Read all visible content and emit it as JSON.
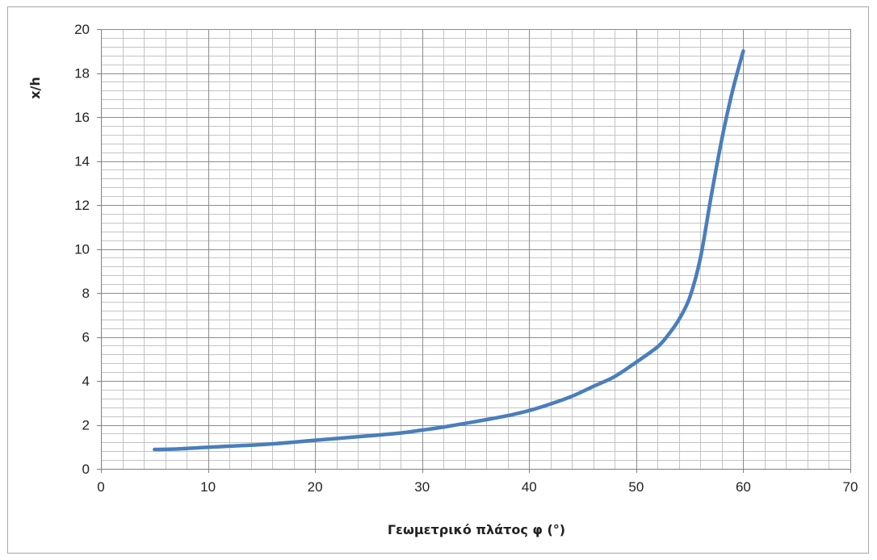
{
  "chart_data": {
    "type": "line",
    "title": "",
    "xlabel": "Γεωμετρικό πλάτος φ (°)",
    "ylabel": "x/h",
    "xlim": [
      0,
      70
    ],
    "ylim": [
      0,
      20
    ],
    "x_major_step": 10,
    "x_minor_step": 2,
    "y_major_step": 2,
    "y_minor_step": 0.4,
    "grid": true,
    "legend": "none",
    "series": [
      {
        "color": "#4a7ebb",
        "x": [
          5,
          7,
          10,
          12,
          15,
          18,
          20,
          25,
          28,
          30,
          32,
          35,
          38,
          40,
          42,
          44,
          46,
          48,
          50,
          52,
          53,
          54,
          55,
          56,
          57,
          58,
          59,
          60
        ],
        "y": [
          0.88,
          0.9,
          0.98,
          1.03,
          1.1,
          1.21,
          1.3,
          1.5,
          1.63,
          1.76,
          1.9,
          2.15,
          2.42,
          2.65,
          2.95,
          3.3,
          3.75,
          4.2,
          4.85,
          5.55,
          6.1,
          6.8,
          7.8,
          9.6,
          12.4,
          15.0,
          17.2,
          19.0
        ]
      }
    ],
    "x_ticks": [
      "0",
      "10",
      "20",
      "30",
      "40",
      "50",
      "60",
      "70"
    ],
    "y_ticks": [
      "0",
      "2",
      "4",
      "6",
      "8",
      "10",
      "12",
      "14",
      "16",
      "18",
      "20"
    ]
  }
}
